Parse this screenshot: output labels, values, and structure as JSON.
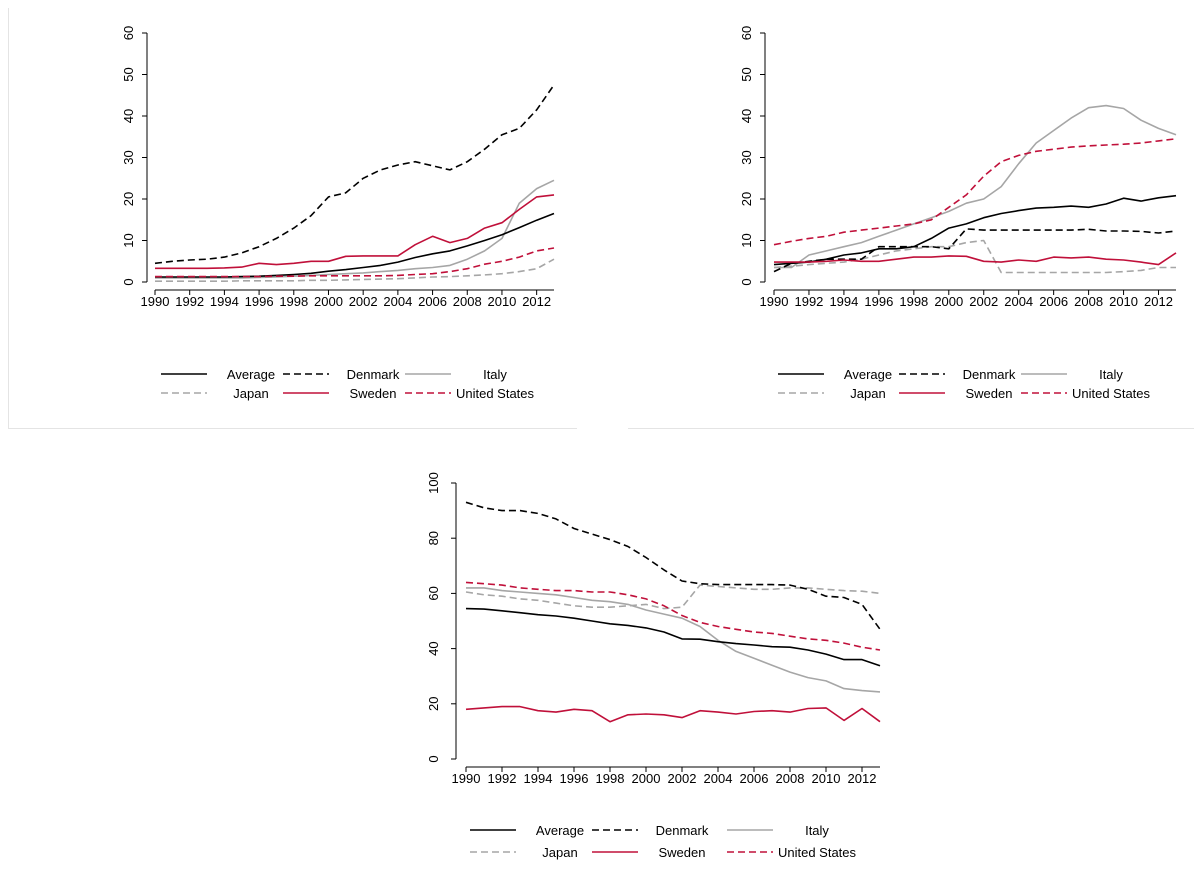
{
  "chart_data": [
    {
      "type": "line",
      "title": "",
      "xlabel": "",
      "ylabel": "",
      "ylim": [
        0,
        60
      ],
      "yticks": [
        "0",
        "10",
        "20",
        "30",
        "40",
        "50",
        "60"
      ],
      "xticks": [
        "1990",
        "1992",
        "1994",
        "1996",
        "1998",
        "2000",
        "2002",
        "2004",
        "2006",
        "2008",
        "2010",
        "2012"
      ],
      "x": [
        1990,
        1991,
        1992,
        1993,
        1994,
        1995,
        1996,
        1997,
        1998,
        1999,
        2000,
        2001,
        2002,
        2003,
        2004,
        2005,
        2006,
        2007,
        2008,
        2009,
        2010,
        2011,
        2012,
        2013
      ],
      "legend_position": "bottom",
      "series": [
        {
          "name": "Average",
          "color": "#000000",
          "dash": "solid",
          "values": [
            1.2,
            1.2,
            1.2,
            1.2,
            1.2,
            1.3,
            1.4,
            1.6,
            1.8,
            2.1,
            2.6,
            3.0,
            3.5,
            4.0,
            4.8,
            5.9,
            6.8,
            7.5,
            8.7,
            10.0,
            11.4,
            13.1,
            14.9,
            16.5
          ]
        },
        {
          "name": "Denmark",
          "color": "#000000",
          "dash": "dashed",
          "values": [
            4.5,
            5.0,
            5.3,
            5.5,
            6.0,
            7.0,
            8.5,
            10.5,
            13.0,
            16.0,
            20.5,
            21.5,
            25.0,
            27.0,
            28.2,
            29.0,
            28.0,
            27.0,
            29.0,
            32.0,
            35.5,
            37.0,
            41.5,
            47.5
          ]
        },
        {
          "name": "Italy",
          "color": "#a6a6a6",
          "dash": "solid",
          "values": [
            1.0,
            1.0,
            1.0,
            1.0,
            1.0,
            1.0,
            1.1,
            1.2,
            1.4,
            1.6,
            1.8,
            2.0,
            2.2,
            2.5,
            2.8,
            3.2,
            3.5,
            4.0,
            5.5,
            7.5,
            10.5,
            19.0,
            22.5,
            24.5
          ]
        },
        {
          "name": "Japan",
          "color": "#a6a6a6",
          "dash": "dashed",
          "values": [
            0.2,
            0.2,
            0.2,
            0.2,
            0.2,
            0.3,
            0.3,
            0.3,
            0.3,
            0.4,
            0.4,
            0.5,
            0.6,
            0.7,
            0.8,
            1.0,
            1.2,
            1.3,
            1.5,
            1.7,
            2.0,
            2.5,
            3.2,
            5.5
          ]
        },
        {
          "name": "Sweden",
          "color": "#c0103a",
          "dash": "solid",
          "values": [
            3.3,
            3.3,
            3.3,
            3.3,
            3.4,
            3.6,
            4.5,
            4.2,
            4.5,
            5.0,
            5.0,
            6.2,
            6.3,
            6.3,
            6.3,
            9.0,
            11.0,
            9.5,
            10.5,
            13.0,
            14.3,
            17.5,
            20.5,
            21.0
          ]
        },
        {
          "name": "United States",
          "color": "#c0103a",
          "dash": "dashed",
          "values": [
            1.3,
            1.3,
            1.3,
            1.3,
            1.3,
            1.3,
            1.3,
            1.4,
            1.4,
            1.5,
            1.5,
            1.5,
            1.5,
            1.5,
            1.6,
            1.8,
            2.0,
            2.5,
            3.2,
            4.3,
            5.0,
            6.0,
            7.5,
            8.2
          ]
        }
      ]
    },
    {
      "type": "line",
      "title": "",
      "xlabel": "",
      "ylabel": "",
      "ylim": [
        0,
        60
      ],
      "yticks": [
        "0",
        "10",
        "20",
        "30",
        "40",
        "50",
        "60"
      ],
      "xticks": [
        "1990",
        "1992",
        "1994",
        "1996",
        "1998",
        "2000",
        "2002",
        "2004",
        "2006",
        "2008",
        "2010",
        "2012"
      ],
      "x": [
        1990,
        1991,
        1992,
        1993,
        1994,
        1995,
        1996,
        1997,
        1998,
        1999,
        2000,
        2001,
        2002,
        2003,
        2004,
        2005,
        2006,
        2007,
        2008,
        2009,
        2010,
        2011,
        2012,
        2013
      ],
      "legend_position": "bottom",
      "series": [
        {
          "name": "Average",
          "color": "#000000",
          "dash": "solid",
          "values": [
            4.2,
            4.5,
            4.8,
            5.5,
            6.5,
            7.0,
            8.0,
            8.0,
            8.5,
            10.5,
            13.0,
            14.0,
            15.5,
            16.5,
            17.2,
            17.8,
            18.0,
            18.3,
            18.0,
            18.8,
            20.2,
            19.5,
            20.3,
            20.8
          ]
        },
        {
          "name": "Denmark",
          "color": "#000000",
          "dash": "dashed",
          "values": [
            2.5,
            4.5,
            5.0,
            5.5,
            5.5,
            5.5,
            8.5,
            8.5,
            8.5,
            8.5,
            8.0,
            12.8,
            12.5,
            12.5,
            12.5,
            12.5,
            12.5,
            12.5,
            12.7,
            12.3,
            12.3,
            12.2,
            11.8,
            12.3
          ]
        },
        {
          "name": "Italy",
          "color": "#a6a6a6",
          "dash": "solid",
          "values": [
            3.5,
            3.5,
            6.5,
            7.5,
            8.5,
            9.5,
            11.0,
            12.5,
            14.0,
            15.5,
            17.0,
            19.0,
            20.0,
            23.0,
            28.5,
            33.5,
            36.5,
            39.5,
            42.0,
            42.5,
            41.8,
            39.0,
            37.0,
            35.5
          ]
        },
        {
          "name": "Japan",
          "color": "#a6a6a6",
          "dash": "dashed",
          "values": [
            3.5,
            3.8,
            4.2,
            4.5,
            4.8,
            5.5,
            6.5,
            7.5,
            8.0,
            8.5,
            8.5,
            9.5,
            10.0,
            2.3,
            2.3,
            2.3,
            2.3,
            2.3,
            2.3,
            2.3,
            2.5,
            2.8,
            3.5,
            3.5
          ]
        },
        {
          "name": "Sweden",
          "color": "#c0103a",
          "dash": "solid",
          "values": [
            4.8,
            4.8,
            4.8,
            5.0,
            5.3,
            5.0,
            5.0,
            5.5,
            6.0,
            6.0,
            6.3,
            6.2,
            5.0,
            4.8,
            5.3,
            5.0,
            6.0,
            5.8,
            6.0,
            5.5,
            5.3,
            4.8,
            4.2,
            7.0
          ]
        },
        {
          "name": "United States",
          "color": "#c0103a",
          "dash": "dashed",
          "values": [
            9.0,
            9.8,
            10.5,
            11.0,
            12.0,
            12.5,
            13.0,
            13.5,
            14.0,
            15.0,
            18.0,
            21.0,
            25.5,
            29.0,
            30.5,
            31.5,
            32.0,
            32.5,
            32.8,
            33.0,
            33.2,
            33.5,
            34.0,
            34.5
          ]
        }
      ]
    },
    {
      "type": "line",
      "title": "",
      "xlabel": "",
      "ylabel": "",
      "ylim": [
        0,
        100
      ],
      "yticks": [
        "0",
        "20",
        "40",
        "60",
        "80",
        "100"
      ],
      "xticks": [
        "1990",
        "1992",
        "1994",
        "1996",
        "1998",
        "2000",
        "2002",
        "2004",
        "2006",
        "2008",
        "2010",
        "2012"
      ],
      "x": [
        1990,
        1991,
        1992,
        1993,
        1994,
        1995,
        1996,
        1997,
        1998,
        1999,
        2000,
        2001,
        2002,
        2003,
        2004,
        2005,
        2006,
        2007,
        2008,
        2009,
        2010,
        2011,
        2012,
        2013
      ],
      "legend_position": "bottom",
      "series": [
        {
          "name": "Average",
          "color": "#000000",
          "dash": "solid",
          "values": [
            54.5,
            54.3,
            53.7,
            53.0,
            52.3,
            51.8,
            51.0,
            50.0,
            49.0,
            48.4,
            47.5,
            46.0,
            43.5,
            43.4,
            42.5,
            41.8,
            41.3,
            40.7,
            40.5,
            39.5,
            38.0,
            36.0,
            36.0,
            33.8
          ]
        },
        {
          "name": "Denmark",
          "color": "#000000",
          "dash": "dashed",
          "values": [
            93.0,
            91.0,
            90.0,
            90.0,
            89.0,
            87.0,
            83.5,
            81.5,
            79.5,
            77.0,
            73.0,
            68.5,
            64.5,
            63.5,
            63.2,
            63.2,
            63.2,
            63.2,
            63.0,
            61.5,
            59.0,
            58.5,
            56.0,
            47.0
          ]
        },
        {
          "name": "Italy",
          "color": "#a6a6a6",
          "dash": "solid",
          "values": [
            62.0,
            62.0,
            61.0,
            60.5,
            60.0,
            59.5,
            58.5,
            57.5,
            57.0,
            56.0,
            54.0,
            52.5,
            51.0,
            48.0,
            43.0,
            39.0,
            36.5,
            34.0,
            31.5,
            29.5,
            28.3,
            25.5,
            24.8,
            24.3
          ]
        },
        {
          "name": "Japan",
          "color": "#a6a6a6",
          "dash": "dashed",
          "values": [
            60.5,
            59.5,
            59.0,
            58.0,
            57.5,
            56.5,
            55.5,
            55.0,
            55.0,
            55.5,
            56.0,
            54.5,
            55.0,
            63.0,
            62.5,
            62.0,
            61.5,
            61.5,
            62.0,
            62.0,
            61.5,
            61.0,
            60.8,
            60.0
          ]
        },
        {
          "name": "Sweden",
          "color": "#c0103a",
          "dash": "solid",
          "values": [
            18.0,
            18.5,
            19.0,
            19.0,
            17.5,
            17.0,
            18.0,
            17.5,
            13.5,
            16.0,
            16.3,
            16.0,
            15.0,
            17.5,
            17.0,
            16.3,
            17.2,
            17.5,
            17.0,
            18.3,
            18.5,
            14.0,
            18.3,
            13.5
          ]
        },
        {
          "name": "United States",
          "color": "#c0103a",
          "dash": "dashed",
          "values": [
            64.0,
            63.5,
            63.0,
            62.0,
            61.5,
            61.0,
            61.0,
            60.5,
            60.5,
            59.5,
            58.0,
            55.5,
            52.0,
            49.5,
            48.0,
            47.0,
            46.0,
            45.5,
            44.5,
            43.5,
            43.0,
            42.0,
            40.5,
            39.5
          ]
        }
      ]
    }
  ]
}
